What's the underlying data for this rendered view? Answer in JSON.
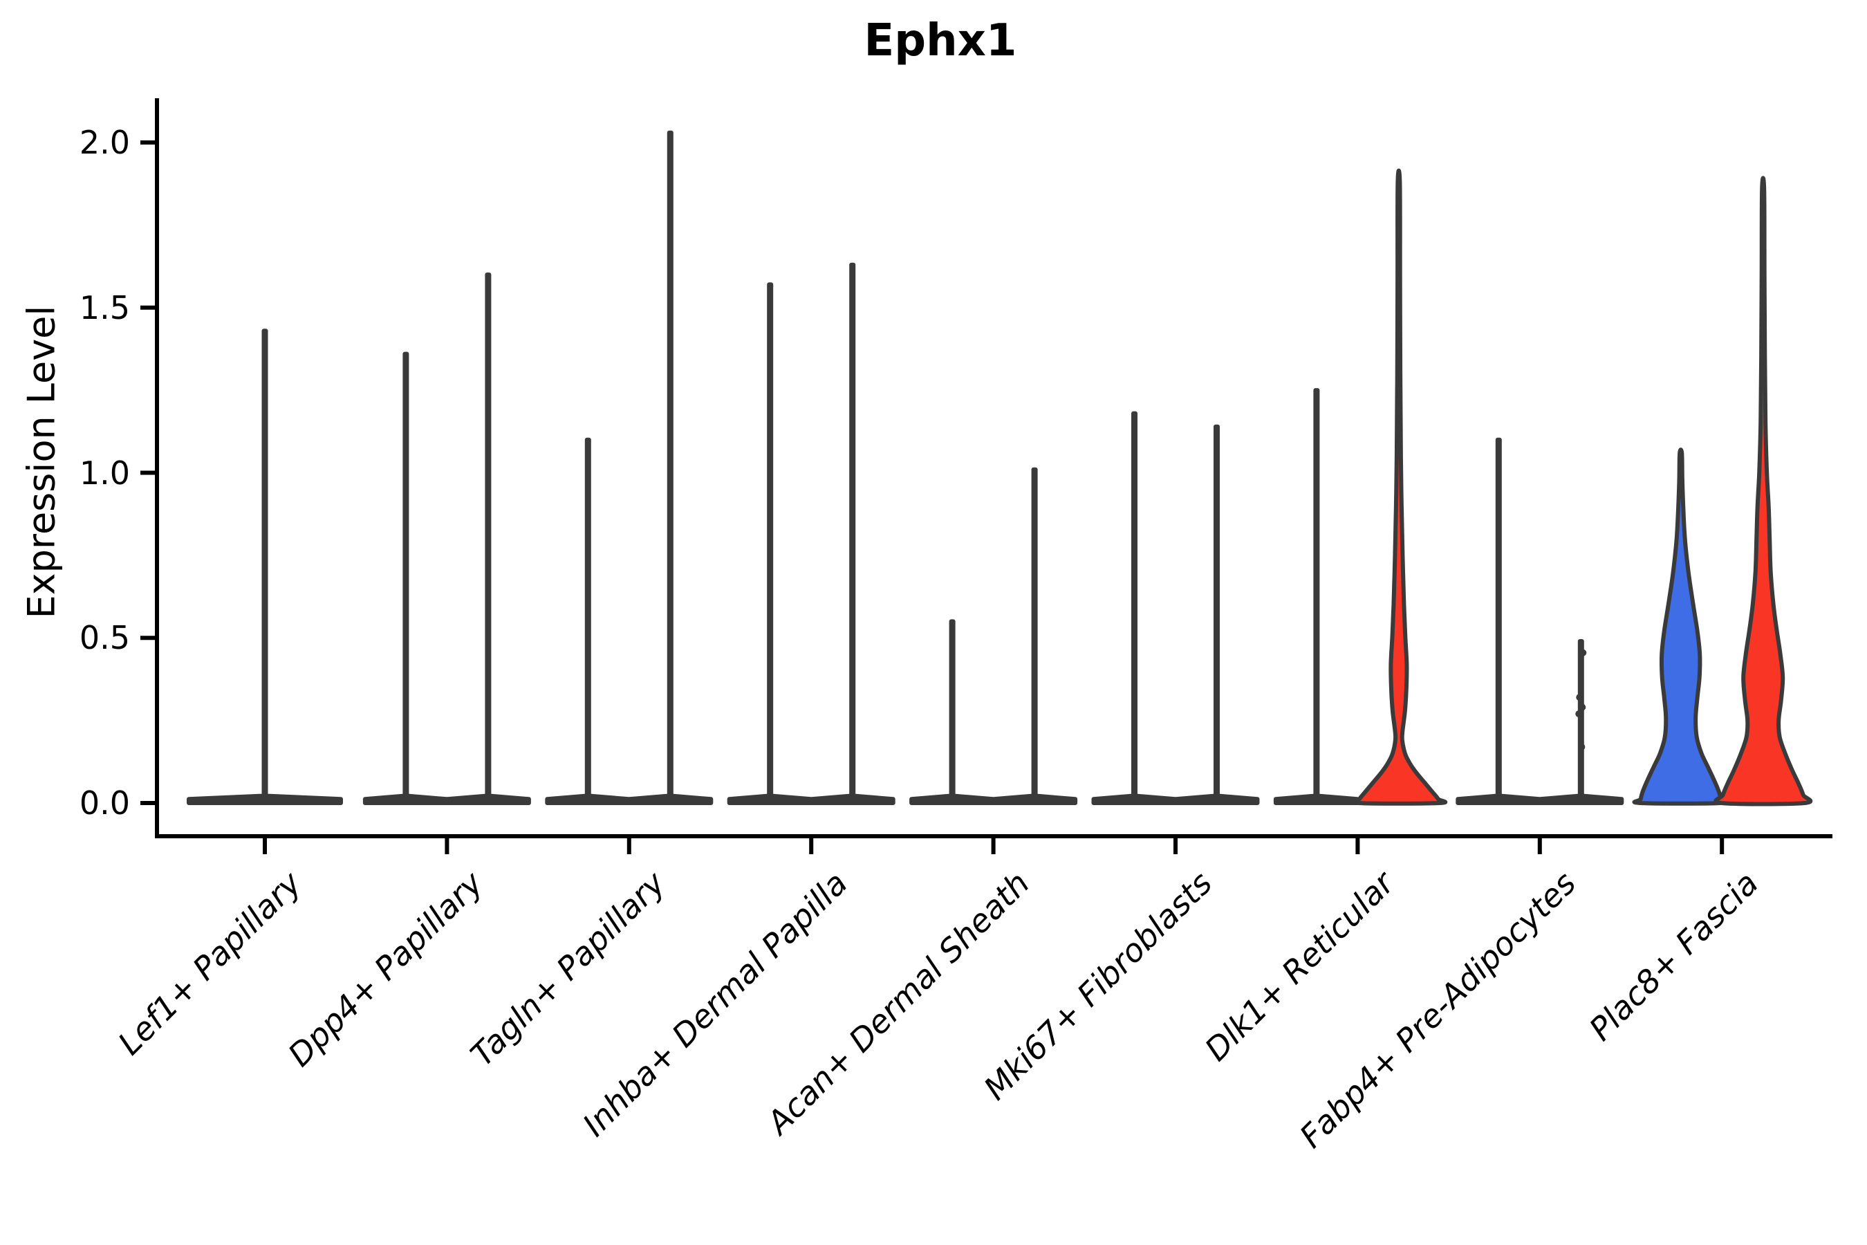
{
  "chart_data": {
    "type": "violin",
    "title": "Ephx1",
    "ylabel": "Expression Level",
    "xlabel": "",
    "ylim": [
      0,
      2.13
    ],
    "yticks": [
      0.0,
      0.5,
      1.0,
      1.5,
      2.0
    ],
    "ytick_labels": [
      "0.0",
      "0.5",
      "1.0",
      "1.5",
      "2.0"
    ],
    "grid": false,
    "legend": "none",
    "categories": [
      "Lef1+ Papillary",
      "Dpp4+ Papillary",
      "Tagln+ Papillary",
      "Inhba+ Dermal Papilla",
      "Acan+ Dermal Sheath",
      "Mki67+ Fibroblasts",
      "Dlk1+ Reticular",
      "Fabp4+ Pre-Adipocytes",
      "Plac8+ Fascia"
    ],
    "colors": {
      "group_blue_fill": "#3E6DE5",
      "group_red_fill": "#F93526",
      "violin_outline": "#3A3A3A",
      "axis": "#000000",
      "text": "#000000",
      "background": "#FFFFFF"
    },
    "violins": [
      {
        "category": 0,
        "side": "center",
        "group": "single",
        "fill": "dark",
        "max": 1.43,
        "base_halfwidth": 110
      },
      {
        "category": 1,
        "side": "left",
        "group": "blue",
        "fill": "dark",
        "max": 1.36,
        "base_halfwidth": 59
      },
      {
        "category": 1,
        "side": "right",
        "group": "red",
        "fill": "dark",
        "max": 1.6,
        "base_halfwidth": 59
      },
      {
        "category": 2,
        "side": "left",
        "group": "blue",
        "fill": "dark",
        "max": 1.1,
        "base_halfwidth": 59
      },
      {
        "category": 2,
        "side": "right",
        "group": "red",
        "fill": "dark",
        "max": 2.03,
        "base_halfwidth": 59
      },
      {
        "category": 3,
        "side": "left",
        "group": "blue",
        "fill": "dark",
        "max": 1.57,
        "base_halfwidth": 59
      },
      {
        "category": 3,
        "side": "right",
        "group": "red",
        "fill": "dark",
        "max": 1.63,
        "base_halfwidth": 59
      },
      {
        "category": 4,
        "side": "left",
        "group": "blue",
        "fill": "dark",
        "max": 0.55,
        "base_halfwidth": 59
      },
      {
        "category": 4,
        "side": "right",
        "group": "red",
        "fill": "dark",
        "max": 1.01,
        "base_halfwidth": 59
      },
      {
        "category": 5,
        "side": "left",
        "group": "blue",
        "fill": "dark",
        "max": 1.18,
        "base_halfwidth": 59
      },
      {
        "category": 5,
        "side": "right",
        "group": "red",
        "fill": "dark",
        "max": 1.14,
        "base_halfwidth": 59
      },
      {
        "category": 6,
        "side": "left",
        "group": "blue",
        "fill": "dark",
        "max": 1.25,
        "base_halfwidth": 59
      },
      {
        "category": 6,
        "side": "right",
        "group": "red",
        "fill": "red",
        "max": 1.88,
        "base_halfwidth": 59,
        "profile": [
          [
            1.88,
            1.5
          ],
          [
            1.6,
            1.8
          ],
          [
            1.3,
            2.2
          ],
          [
            1.05,
            3.0
          ],
          [
            0.9,
            4.0
          ],
          [
            0.75,
            5.5
          ],
          [
            0.6,
            7.5
          ],
          [
            0.5,
            9.5
          ],
          [
            0.42,
            11.5
          ],
          [
            0.35,
            11.0
          ],
          [
            0.28,
            9.0
          ],
          [
            0.22,
            5.5
          ],
          [
            0.19,
            5.0
          ],
          [
            0.15,
            9.0
          ],
          [
            0.12,
            16
          ],
          [
            0.09,
            26
          ],
          [
            0.06,
            38
          ],
          [
            0.03,
            50
          ],
          [
            0.012,
            57
          ],
          [
            0,
            59
          ]
        ]
      },
      {
        "category": 7,
        "side": "left",
        "group": "blue",
        "fill": "dark",
        "max": 1.1,
        "base_halfwidth": 59
      },
      {
        "category": 7,
        "side": "right",
        "group": "red",
        "fill": "dark",
        "max": 0.49,
        "base_halfwidth": 59,
        "jitter_values": [
          0.455,
          0.32,
          0.29,
          0.27,
          0.17
        ]
      },
      {
        "category": 8,
        "side": "left",
        "group": "blue",
        "fill": "blue",
        "max": 1.06,
        "base_halfwidth": 58.5,
        "profile": [
          [
            1.06,
            1.5
          ],
          [
            0.98,
            2.2
          ],
          [
            0.9,
            3.5
          ],
          [
            0.8,
            6
          ],
          [
            0.7,
            11
          ],
          [
            0.6,
            18
          ],
          [
            0.52,
            24
          ],
          [
            0.45,
            27.5
          ],
          [
            0.38,
            27
          ],
          [
            0.32,
            24
          ],
          [
            0.26,
            21.5
          ],
          [
            0.2,
            23
          ],
          [
            0.15,
            30
          ],
          [
            0.11,
            39
          ],
          [
            0.07,
            48
          ],
          [
            0.035,
            55
          ],
          [
            0.012,
            58
          ],
          [
            0,
            58.5
          ]
        ]
      },
      {
        "category": 8,
        "side": "right",
        "group": "red",
        "fill": "red",
        "max": 1.86,
        "base_halfwidth": 60,
        "profile": [
          [
            1.86,
            1.5
          ],
          [
            1.6,
            2
          ],
          [
            1.35,
            2.6
          ],
          [
            1.15,
            3.5
          ],
          [
            1.0,
            5.5
          ],
          [
            0.9,
            8
          ],
          [
            0.8,
            9.5
          ],
          [
            0.7,
            11
          ],
          [
            0.6,
            15
          ],
          [
            0.52,
            20
          ],
          [
            0.45,
            25
          ],
          [
            0.38,
            28.5
          ],
          [
            0.31,
            26
          ],
          [
            0.25,
            22.5
          ],
          [
            0.2,
            24
          ],
          [
            0.15,
            32
          ],
          [
            0.1,
            42
          ],
          [
            0.06,
            51
          ],
          [
            0.025,
            58
          ],
          [
            0,
            60
          ]
        ]
      }
    ]
  }
}
